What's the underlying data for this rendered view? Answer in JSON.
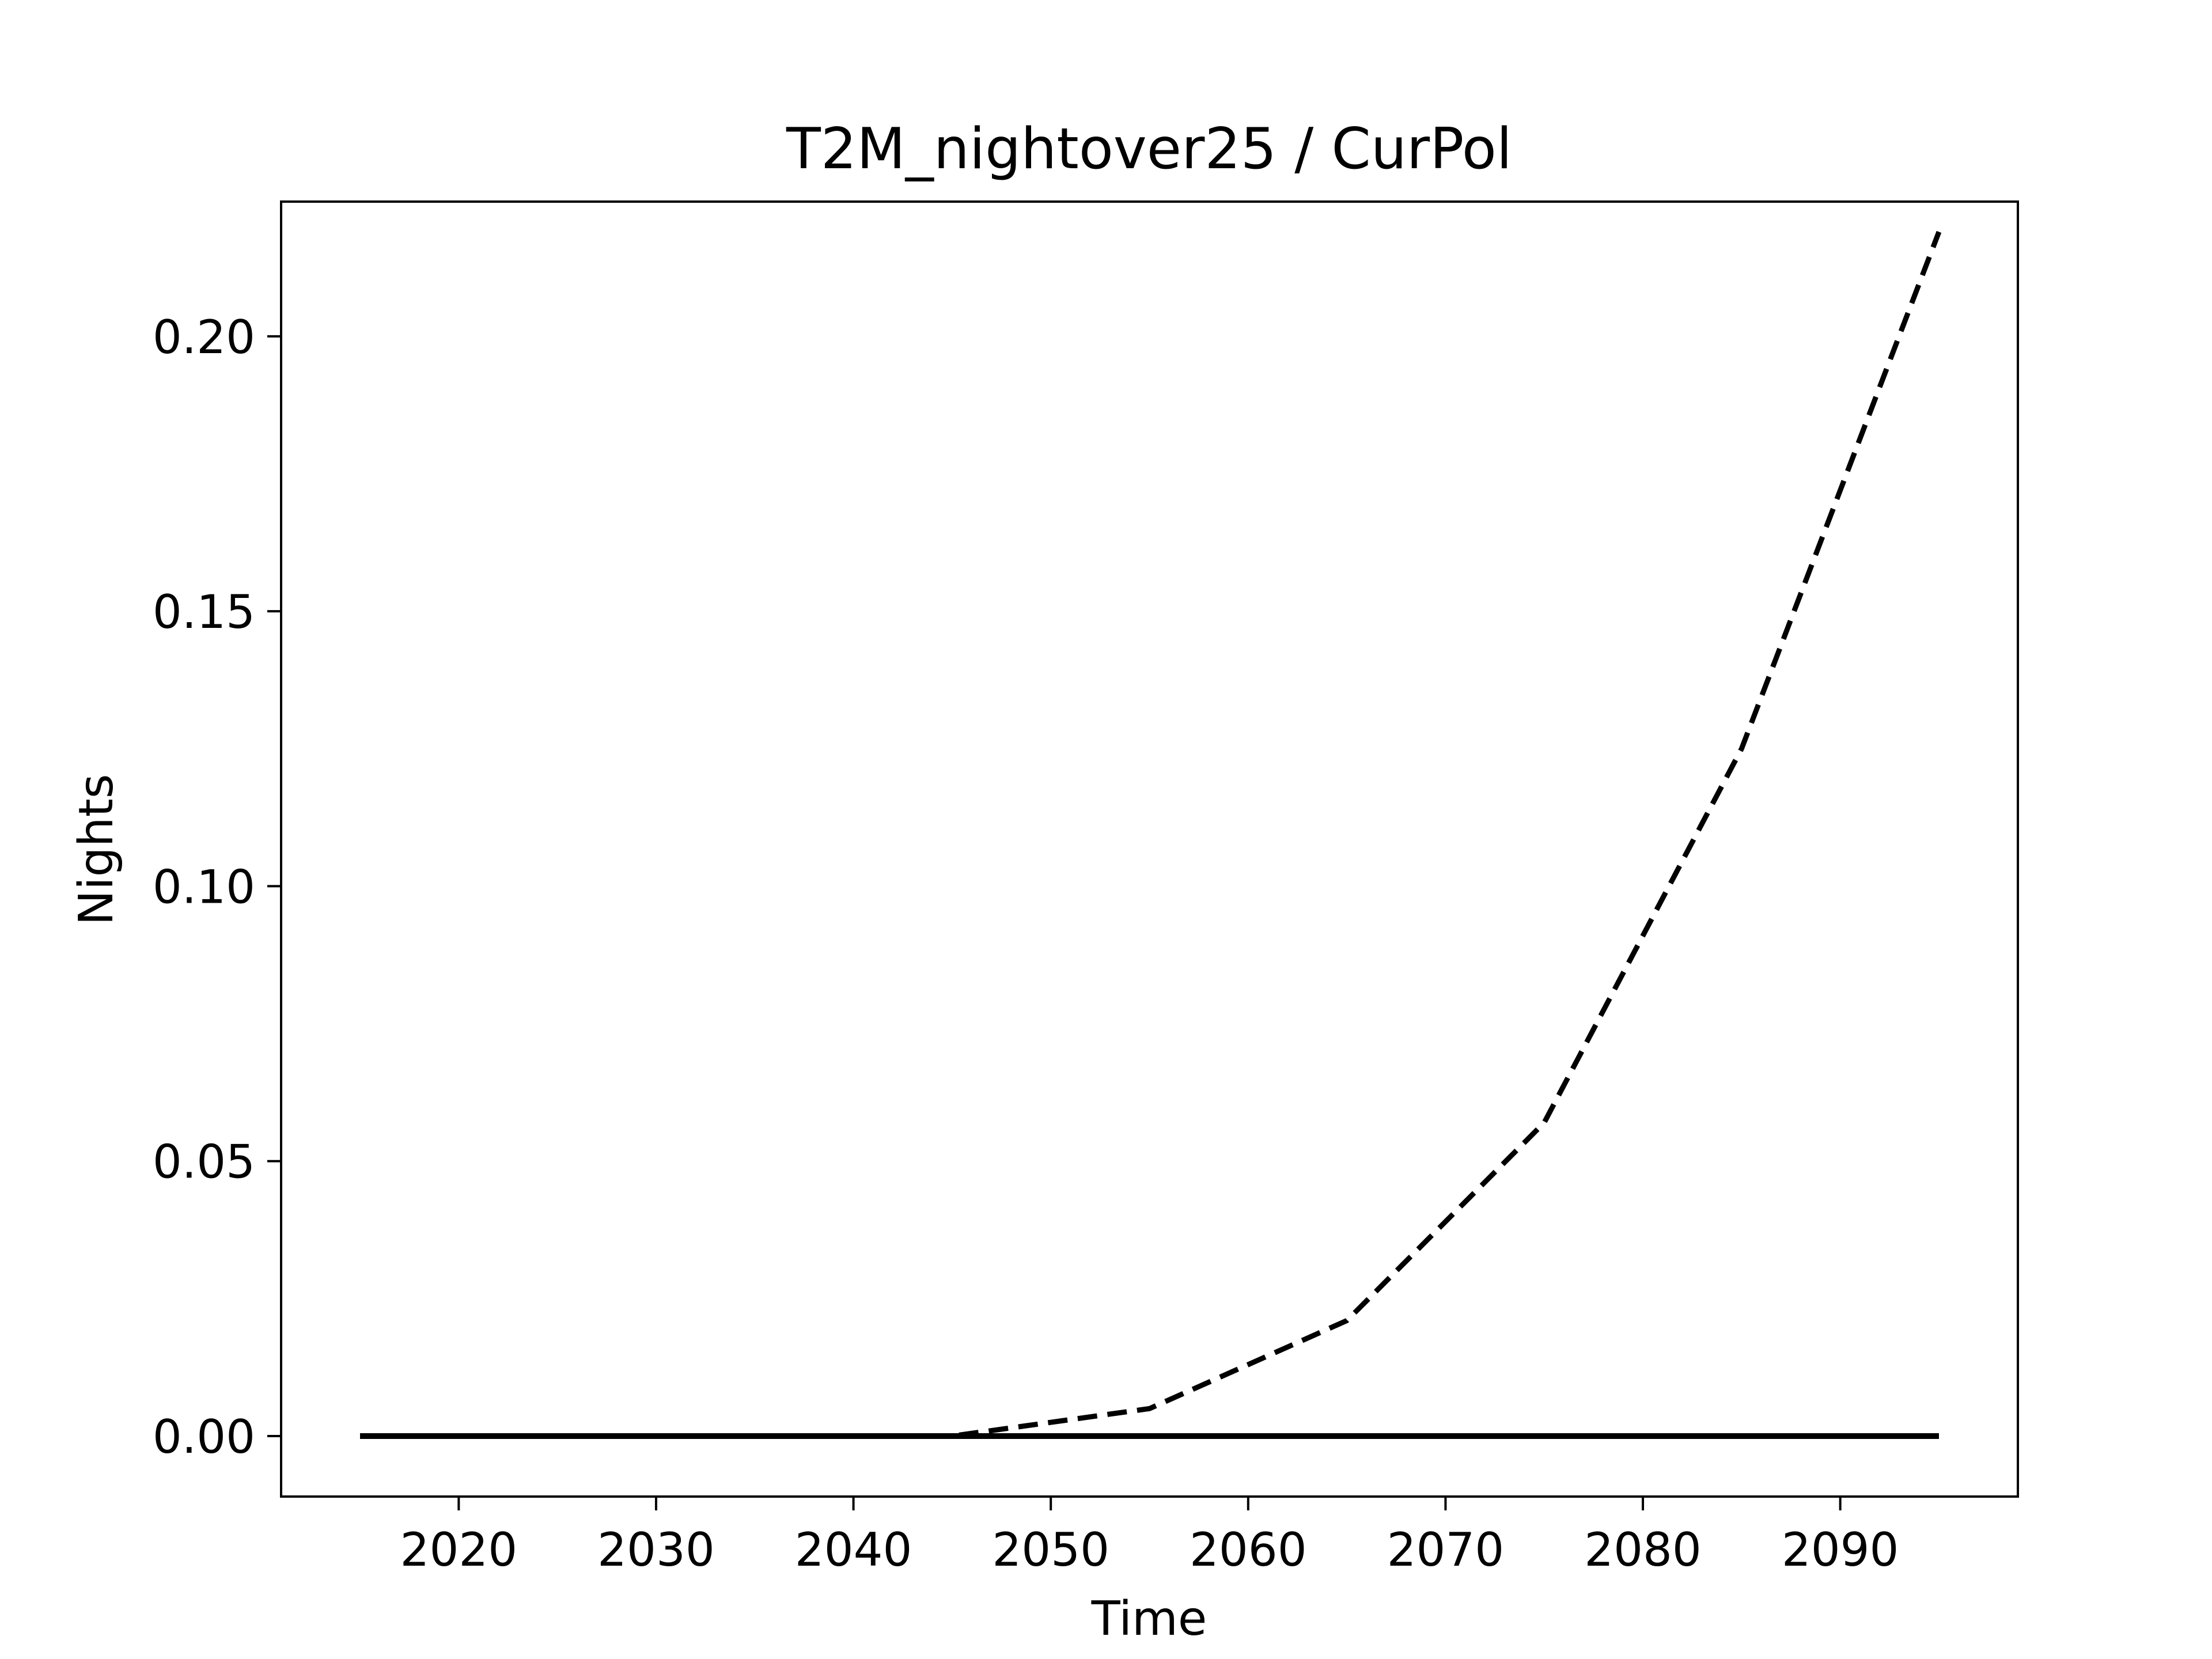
{
  "chart_data": {
    "type": "line",
    "title": "T2M_nightover25 / CurPol",
    "xlabel": "Time",
    "ylabel": "Nights",
    "xlim": [
      2011,
      2099
    ],
    "ylim": [
      -0.011,
      0.2245
    ],
    "x_ticks": [
      2020,
      2030,
      2040,
      2050,
      2060,
      2070,
      2080,
      2090
    ],
    "y_ticks": [
      0.0,
      0.05,
      0.1,
      0.15,
      0.2
    ],
    "x_tick_labels": [
      "2020",
      "2030",
      "2040",
      "2050",
      "2060",
      "2070",
      "2080",
      "2090"
    ],
    "y_tick_labels": [
      "0.00",
      "0.05",
      "0.10",
      "0.15",
      "0.20"
    ],
    "grid": false,
    "legend": "none",
    "series": [
      {
        "style": "dashed",
        "color": "#000000",
        "x": [
          2015,
          2025,
          2035,
          2045,
          2055,
          2065,
          2075,
          2085,
          2095
        ],
        "y": [
          0.0,
          0.0,
          0.0,
          0.0,
          0.005,
          0.021,
          0.057,
          0.125,
          0.219
        ]
      },
      {
        "style": "solid",
        "color": "#000000",
        "x": [
          2015,
          2025,
          2035,
          2045,
          2055,
          2065,
          2075,
          2085,
          2095
        ],
        "y": [
          0.0,
          0.0,
          0.0,
          0.0,
          0.0,
          0.0,
          0.0,
          0.0,
          0.0
        ]
      }
    ]
  }
}
